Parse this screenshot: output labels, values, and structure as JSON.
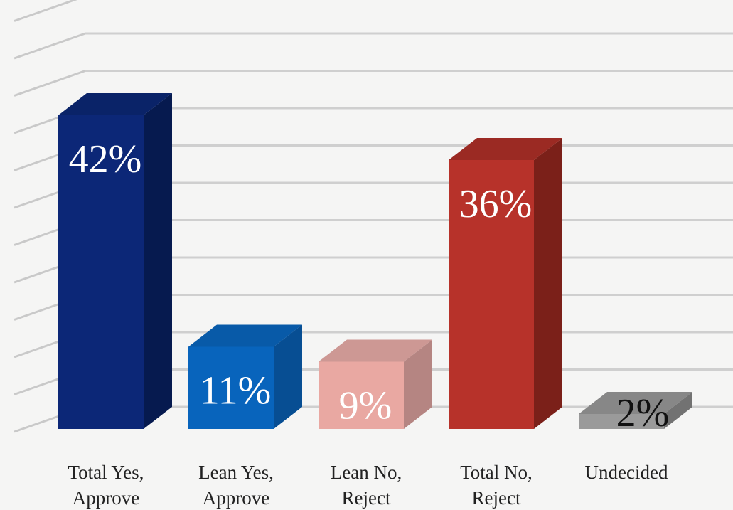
{
  "chart_data": {
    "type": "bar",
    "categories": [
      [
        "Total Yes,",
        "Approve"
      ],
      [
        "Lean Yes,",
        "Approve"
      ],
      [
        "Lean No,",
        "Reject"
      ],
      [
        "Total No,",
        "Reject"
      ],
      [
        "Undecided"
      ]
    ],
    "values": [
      42,
      11,
      9,
      36,
      2
    ],
    "data_labels": [
      "42%",
      "11%",
      "9%",
      "36%",
      "2%"
    ],
    "colors": [
      {
        "front": "#0c2777",
        "side": "#061a4f",
        "top": "#0a2368",
        "label": "#ffffff"
      },
      {
        "front": "#0864bc",
        "side": "#074e93",
        "top": "#085aa8",
        "label": "#ffffff"
      },
      {
        "front": "#e9a8a2",
        "side": "#b58582",
        "top": "#cd9894",
        "label": "#ffffff"
      },
      {
        "front": "#b7322a",
        "side": "#7b2019",
        "top": "#9b2a23",
        "label": "#ffffff"
      },
      {
        "front": "#9a9a9a",
        "side": "#727272",
        "top": "#878787",
        "label": "#111111"
      }
    ],
    "ylim": [
      0,
      50
    ],
    "grid": true,
    "title": "",
    "xlabel": "",
    "ylabel": "",
    "legend": "none"
  }
}
